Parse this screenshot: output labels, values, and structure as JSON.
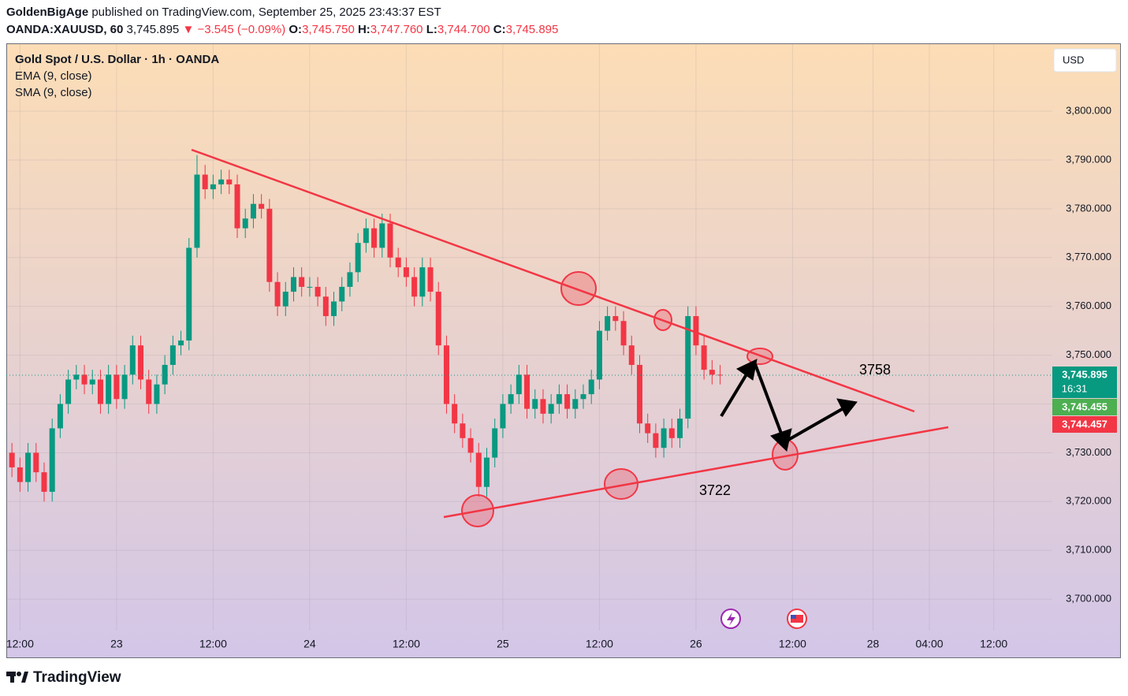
{
  "header": {
    "publisher": "GoldenBigAge",
    "published": "published on TradingView.com, September 25, 2025 23:43:37 EST",
    "symbol": "OANDA:XAUUSD, 60",
    "last": "3,745.895",
    "arrow": "▼",
    "change": "−3.545 (−0.09%)",
    "o_label": "O:",
    "o": "3,745.750",
    "h_label": "H:",
    "h": "3,747.760",
    "l_label": "L:",
    "l": "3,744.700",
    "c_label": "C:",
    "c": "3,745.895"
  },
  "footer": "TradingView",
  "chart_data": {
    "type": "candlestick",
    "title": "Gold Spot / U.S. Dollar · 1h · OANDA",
    "indicators": [
      "EMA (9, close)",
      "SMA (9, close)"
    ],
    "currency": "USD",
    "up_color": "#089981",
    "down_color": "#f23645",
    "x": [
      -13,
      -12,
      -11,
      -10,
      -9,
      -8,
      -7,
      -6,
      -5,
      -4,
      -3,
      -2,
      -1,
      0,
      1,
      2,
      3,
      4,
      5,
      6,
      7,
      8,
      9,
      10,
      11,
      12,
      13,
      14,
      15,
      16,
      17,
      18,
      19,
      20,
      21,
      22,
      23,
      24,
      25,
      26,
      27,
      28,
      29,
      30,
      31,
      32,
      33,
      34,
      35,
      36,
      37,
      38,
      39,
      40,
      41,
      42,
      43,
      44,
      45,
      46,
      47,
      48,
      49,
      50,
      51,
      52,
      53,
      54,
      55,
      56,
      57,
      58,
      59,
      60,
      61,
      62,
      63,
      64,
      65,
      66,
      67,
      68,
      69,
      70,
      71,
      72,
      73,
      74,
      75
    ],
    "open": [
      3730,
      3727,
      3724,
      3730,
      3726,
      3722,
      3735,
      3740,
      3745,
      3746,
      3744,
      3745,
      3740,
      3746,
      3741,
      3746,
      3752,
      3745,
      3740,
      3744,
      3748,
      3752,
      3753,
      3772,
      3787,
      3784,
      3785,
      3786,
      3785,
      3776,
      3778,
      3781,
      3780,
      3765,
      3760,
      3763,
      3766,
      3764,
      3764,
      3762,
      3758,
      3761,
      3764,
      3767,
      3773,
      3776,
      3772,
      3777,
      3770,
      3768,
      3766,
      3762,
      3768,
      3763,
      3752,
      3740,
      3736,
      3733,
      3730,
      3723,
      3729,
      3735,
      3740,
      3742,
      3746,
      3739,
      3741,
      3738,
      3740,
      3742,
      3739,
      3741,
      3742,
      3745,
      3755,
      3758,
      3757,
      3752,
      3748,
      3736,
      3734,
      3731,
      3735,
      3733,
      3737,
      3758,
      3752,
      3747,
      3746
    ],
    "high": [
      3732,
      3729,
      3732,
      3732,
      3728,
      3737,
      3742,
      3747,
      3748,
      3748,
      3747,
      3747,
      3748,
      3748,
      3748,
      3754,
      3754,
      3747,
      3746,
      3750,
      3754,
      3755,
      3774,
      3791,
      3789,
      3787,
      3788,
      3788,
      3787,
      3780,
      3783,
      3783,
      3782,
      3767,
      3765,
      3768,
      3768,
      3766,
      3766,
      3764,
      3763,
      3766,
      3769,
      3775,
      3778,
      3778,
      3779,
      3779,
      3772,
      3770,
      3768,
      3770,
      3770,
      3765,
      3754,
      3742,
      3738,
      3735,
      3732,
      3731,
      3737,
      3742,
      3744,
      3748,
      3748,
      3743,
      3743,
      3742,
      3744,
      3744,
      3743,
      3744,
      3747,
      3757,
      3760,
      3760,
      3759,
      3754,
      3750,
      3738,
      3736,
      3737,
      3737,
      3739,
      3760,
      3760,
      3754,
      3749,
      3748
    ],
    "low": [
      3725,
      3722,
      3722,
      3724,
      3720,
      3720,
      3733,
      3738,
      3743,
      3742,
      3742,
      3738,
      3738,
      3739,
      3739,
      3744,
      3743,
      3738,
      3738,
      3742,
      3746,
      3750,
      3751,
      3770,
      3782,
      3782,
      3783,
      3783,
      3774,
      3774,
      3776,
      3778,
      3763,
      3758,
      3758,
      3761,
      3762,
      3762,
      3760,
      3756,
      3756,
      3759,
      3762,
      3765,
      3771,
      3770,
      3770,
      3768,
      3766,
      3764,
      3760,
      3760,
      3761,
      3750,
      3738,
      3734,
      3731,
      3728,
      3721,
      3721,
      3727,
      3733,
      3738,
      3740,
      3737,
      3737,
      3736,
      3736,
      3738,
      3737,
      3737,
      3739,
      3740,
      3743,
      3753,
      3755,
      3750,
      3746,
      3734,
      3732,
      3729,
      3729,
      3731,
      3731,
      3735,
      3750,
      3745,
      3744,
      3744
    ],
    "close": [
      3727,
      3724,
      3730,
      3726,
      3722,
      3735,
      3740,
      3745,
      3746,
      3744,
      3745,
      3740,
      3746,
      3741,
      3746,
      3752,
      3745,
      3740,
      3744,
      3748,
      3752,
      3753,
      3772,
      3787,
      3784,
      3785,
      3786,
      3785,
      3776,
      3778,
      3781,
      3780,
      3765,
      3760,
      3763,
      3766,
      3764,
      3764,
      3762,
      3758,
      3761,
      3764,
      3767,
      3773,
      3776,
      3772,
      3777,
      3770,
      3768,
      3766,
      3762,
      3768,
      3763,
      3752,
      3740,
      3736,
      3733,
      3730,
      3723,
      3729,
      3735,
      3740,
      3742,
      3746,
      3739,
      3741,
      3738,
      3740,
      3742,
      3739,
      3741,
      3742,
      3745,
      3755,
      3758,
      3757,
      3752,
      3748,
      3736,
      3734,
      3731,
      3735,
      3733,
      3737,
      3758,
      3752,
      3747,
      3746,
      3745.895
    ],
    "xlim": [
      -13.7,
      124.8
    ],
    "xticks": [
      {
        "value": -12,
        "label": "12:00"
      },
      {
        "value": 0,
        "label": "23"
      },
      {
        "value": 12,
        "label": "12:00"
      },
      {
        "value": 24,
        "label": "24"
      },
      {
        "value": 36,
        "label": "12:00"
      },
      {
        "value": 48,
        "label": "25"
      },
      {
        "value": 60,
        "label": "12:00"
      },
      {
        "value": 72,
        "label": "26"
      },
      {
        "value": 84,
        "label": "12:00"
      },
      {
        "value": 94,
        "label": "28"
      },
      {
        "value": 101,
        "label": "04:00"
      },
      {
        "value": 109,
        "label": "12:00"
      }
    ],
    "ylim": [
      3687.9,
      3813.9
    ],
    "yticks": [
      {
        "value": 3700,
        "label": "3,700.000"
      },
      {
        "value": 3710,
        "label": "3,710.000"
      },
      {
        "value": 3720,
        "label": "3,720.000"
      },
      {
        "value": 3730,
        "label": "3,730.000"
      },
      {
        "value": 3740,
        "label": "3,740.000"
      },
      {
        "value": 3750,
        "label": "3,750.000"
      },
      {
        "value": 3760,
        "label": "3,760.000"
      },
      {
        "value": 3770,
        "label": "3,770.000"
      },
      {
        "value": 3780,
        "label": "3,780.000"
      },
      {
        "value": 3790,
        "label": "3,790.000"
      },
      {
        "value": 3800,
        "label": "3,800.000"
      }
    ],
    "grid": true,
    "price_labels": [
      {
        "label": "3,745.895",
        "countdown": "16:31",
        "color": "#089981"
      },
      {
        "label": "3,745.455",
        "color": "#4caf50"
      },
      {
        "label": "3,744.457",
        "color": "#f23645"
      }
    ],
    "annotations": [
      "3758",
      "3722"
    ]
  }
}
